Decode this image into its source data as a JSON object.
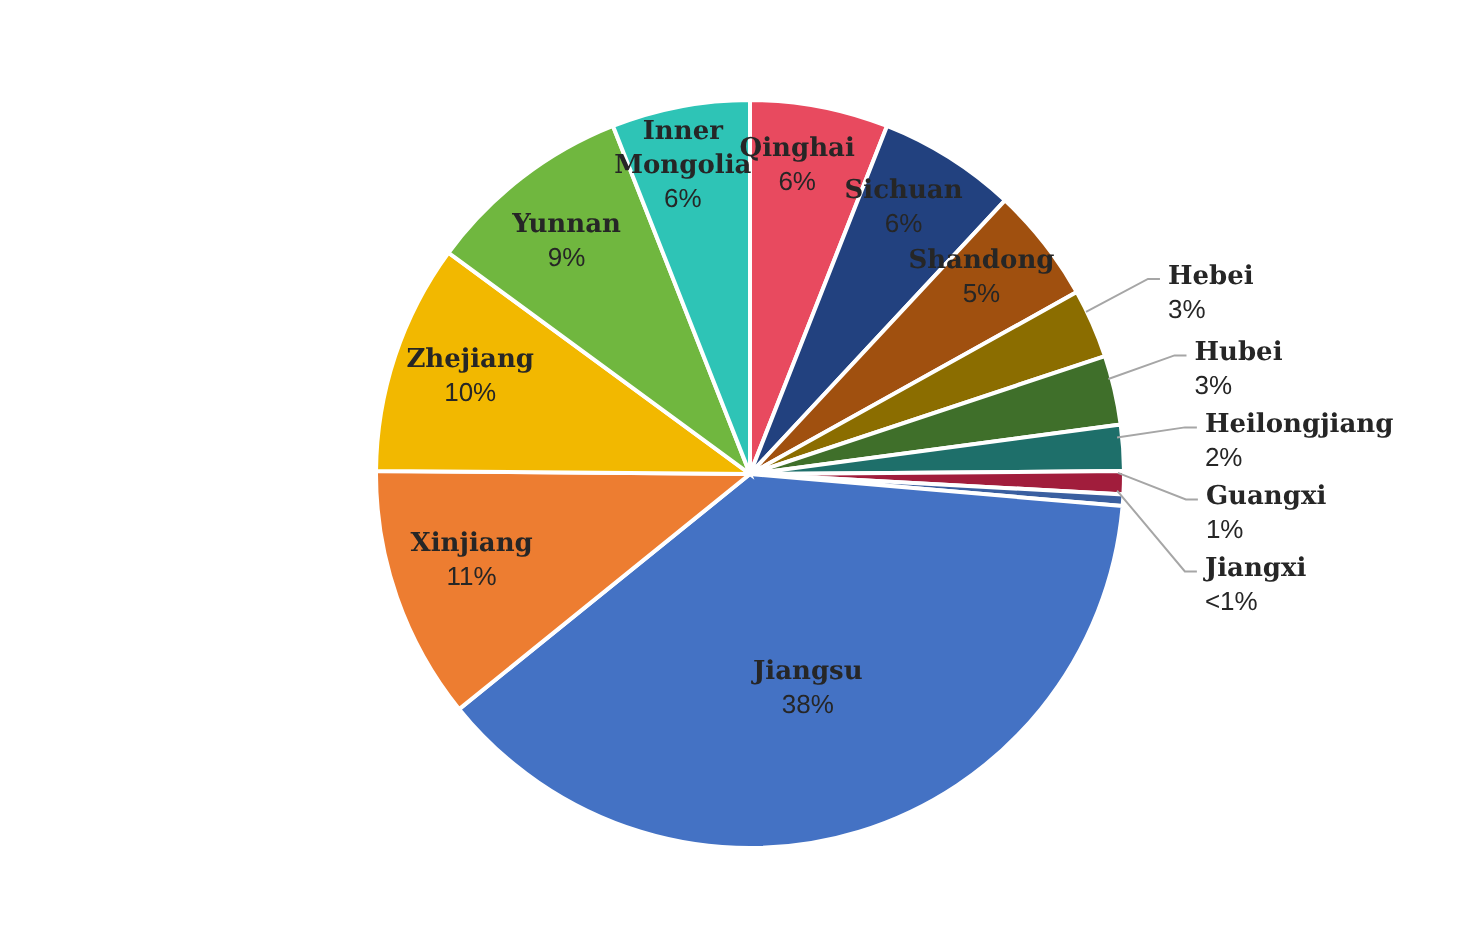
{
  "chart_data": {
    "type": "pie",
    "categories": [
      "Qinghai",
      "Sichuan",
      "Shandong",
      "Hebei",
      "Hubei",
      "Heilongjiang",
      "Guangxi",
      "Jiangxi",
      "Jiangsu",
      "Xinjiang",
      "Zhejiang",
      "Yunnan",
      "Inner Mongolia"
    ],
    "values": [
      6,
      6,
      5,
      3,
      3,
      2,
      1,
      0.5,
      38,
      11,
      10,
      9,
      6
    ],
    "value_labels": [
      "6%",
      "6%",
      "5%",
      "3%",
      "3%",
      "2%",
      "1%",
      "<1%",
      "38%",
      "11%",
      "10%",
      "9%",
      "6%"
    ],
    "colors": [
      "#e84a5f",
      "#22417f",
      "#a0500f",
      "#8b6d00",
      "#3f6f2a",
      "#1e6f6a",
      "#a11d3c",
      "#3a5fa0",
      "#4472c4",
      "#ed7d31",
      "#f2b800",
      "#70b73f",
      "#2ec4b6"
    ],
    "legend": false
  }
}
